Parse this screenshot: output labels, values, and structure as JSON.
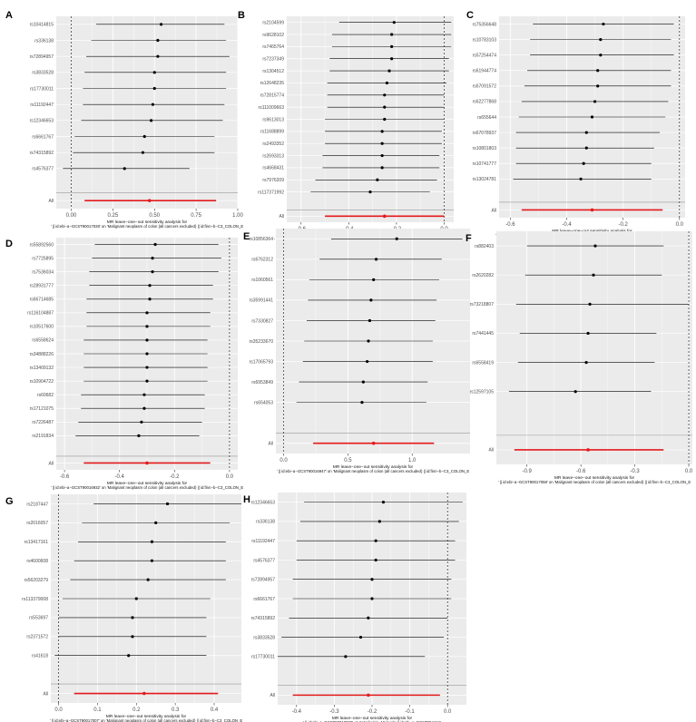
{
  "colors": {
    "panel_bg": "#ebebeb",
    "grid": "#ffffff",
    "point": "#000000",
    "all_point": "#e41a1c",
    "text": "#4d4d4d"
  },
  "chart_data": [
    {
      "panel": "A",
      "type": "scatter",
      "snps": [
        "rs10414815",
        "rs336138",
        "rs72894957",
        "rs3833528",
        "rs17730011",
        "rs11192447",
        "rs12346653",
        "rs6661767",
        "rs74315892",
        "rs4576377"
      ],
      "estimates": [
        0.54,
        0.52,
        0.52,
        0.5,
        0.5,
        0.49,
        0.48,
        0.44,
        0.43,
        0.32
      ],
      "ci_low": [
        0.15,
        0.12,
        0.09,
        0.08,
        0.07,
        0.07,
        0.06,
        0.02,
        0.01,
        -0.05
      ],
      "ci_high": [
        0.92,
        0.93,
        0.95,
        0.93,
        0.93,
        0.92,
        0.91,
        0.86,
        0.86,
        0.71
      ],
      "all": {
        "label": "All",
        "estimate": 0.47,
        "ci_low": 0.08,
        "ci_high": 0.87
      },
      "xlim": [
        -0.09,
        1.0
      ],
      "xticks": [
        0.0,
        0.25,
        0.5,
        0.75,
        1.0
      ],
      "xtick_labels": [
        "0.00",
        "0.25",
        "0.50",
        "0.75",
        "1.00"
      ],
      "xlabel_line1": "MR leave−one−out sensitivity analysis for",
      "xlabel_line2": "' || id:ebi−a−GCST90017028' on 'Malignant neoplasm of colon (all cancers excluded) || id:finn−b−C3_COLON_E"
    },
    {
      "panel": "B",
      "type": "scatter",
      "snps": [
        "rs2104599",
        "rs9628102",
        "rs7465764",
        "rs7237349",
        "rs1304512",
        "rs12648235",
        "rs72815774",
        "rs111009663",
        "rs9613013",
        "rs11688899",
        "rs2493352",
        "rs2693313",
        "rs4668431",
        "rs7976209",
        "rs117371992"
      ],
      "estimates": [
        -0.21,
        -0.22,
        -0.22,
        -0.22,
        -0.23,
        -0.24,
        -0.25,
        -0.25,
        -0.25,
        -0.26,
        -0.26,
        -0.26,
        -0.26,
        -0.28,
        -0.31
      ],
      "ci_low": [
        -0.44,
        -0.47,
        -0.47,
        -0.48,
        -0.48,
        -0.49,
        -0.49,
        -0.49,
        -0.5,
        -0.5,
        -0.5,
        -0.51,
        -0.51,
        -0.54,
        -0.56
      ],
      "ci_high": [
        0.03,
        0.03,
        0.03,
        0.02,
        0.02,
        0.01,
        0.0,
        0.0,
        0.0,
        -0.01,
        -0.01,
        -0.02,
        -0.02,
        -0.03,
        -0.06
      ],
      "all": {
        "label": "All",
        "estimate": -0.25,
        "ci_low": -0.5,
        "ci_high": 0.0
      },
      "xlim": [
        -0.66,
        0.04
      ],
      "xticks": [
        -0.6,
        -0.4,
        -0.2,
        0.0
      ],
      "xtick_labels": [
        "-0.6",
        "-0.4",
        "-0.2",
        "0.0"
      ],
      "xlabel_line1": "MR leave−one−out sensitivity analysis for",
      "xlabel_line2": "' || id:ebi−a−GCST90017045' on 'Malignant neoplasm of colon (all cancers excluded) || id:finn−b−C3_COLON_E"
    },
    {
      "panel": "C",
      "type": "scatter",
      "snps": [
        "rs75356648",
        "rs10783103",
        "rs57254474",
        "rs61944774",
        "rs67091572",
        "rs62277868",
        "rs655644",
        "rs67078937",
        "rs10801803",
        "rs10741777",
        "rs13024781"
      ],
      "estimates": [
        -0.27,
        -0.28,
        -0.28,
        -0.29,
        -0.29,
        -0.3,
        -0.31,
        -0.33,
        -0.33,
        -0.34,
        -0.35
      ],
      "ci_low": [
        -0.52,
        -0.53,
        -0.53,
        -0.54,
        -0.55,
        -0.56,
        -0.57,
        -0.58,
        -0.58,
        -0.58,
        -0.59
      ],
      "ci_high": [
        -0.02,
        -0.03,
        -0.02,
        -0.03,
        -0.03,
        -0.04,
        -0.05,
        -0.07,
        -0.09,
        -0.1,
        -0.1
      ],
      "all": {
        "label": "All",
        "estimate": -0.31,
        "ci_low": -0.56,
        "ci_high": -0.06
      },
      "xlim": [
        -0.64,
        0.02
      ],
      "xticks": [
        -0.6,
        -0.4,
        -0.2,
        0.0
      ],
      "xtick_labels": [
        "-0.6",
        "-0.4",
        "-0.2",
        "0.0"
      ],
      "xlabel_line1": "MR leave−one−out sensitivity analysis for",
      "xlabel_line2": "' || id:ebi−a−GCST90017027' on 'Malignant neoplasm of colon (all cancers excluded) || id:finn−b−C3_COLON_E"
    },
    {
      "panel": "D",
      "type": "scatter",
      "snps": [
        "rs55892560",
        "rs7725895",
        "rs7536034",
        "rs28931777",
        "rs66714685",
        "rs116104887",
        "rs10517600",
        "rs6558624",
        "rs34888226",
        "rs13409132",
        "rs10904722",
        "rs60682",
        "rs17121075",
        "rs7226487",
        "rs2191834"
      ],
      "estimates": [
        -0.27,
        -0.28,
        -0.28,
        -0.29,
        -0.29,
        -0.3,
        -0.3,
        -0.3,
        -0.3,
        -0.3,
        -0.3,
        -0.31,
        -0.31,
        -0.32,
        -0.33
      ],
      "ci_low": [
        -0.49,
        -0.5,
        -0.51,
        -0.51,
        -0.52,
        -0.52,
        -0.52,
        -0.53,
        -0.53,
        -0.53,
        -0.53,
        -0.54,
        -0.54,
        -0.55,
        -0.56
      ],
      "ci_high": [
        -0.04,
        -0.03,
        -0.04,
        -0.06,
        -0.06,
        -0.07,
        -0.07,
        -0.08,
        -0.08,
        -0.08,
        -0.08,
        -0.09,
        -0.09,
        -0.1,
        -0.11
      ],
      "all": {
        "label": "All",
        "estimate": -0.3,
        "ci_low": -0.53,
        "ci_high": -0.07
      },
      "xlim": [
        -0.63,
        0.03
      ],
      "xticks": [
        -0.6,
        -0.4,
        -0.2,
        0.0
      ],
      "xtick_labels": [
        "-0.6",
        "-0.4",
        "-0.2",
        "0.0"
      ],
      "xlabel_line1": "MR leave−one−out sensitivity analysis for",
      "xlabel_line2": "' || id:ebi−a−GCST90016932' on 'Malignant neoplasm of colon (all cancers excluded) || id:finn−b−C3_COLON_E"
    },
    {
      "panel": "E",
      "type": "scatter",
      "snps": [
        "rs10856364",
        "rs6762312",
        "rs1060561",
        "rs35991441",
        "rs7330827",
        "rs35233670",
        "rs17065793",
        "rs6953849",
        "rs654053"
      ],
      "estimates": [
        0.88,
        0.72,
        0.7,
        0.68,
        0.67,
        0.66,
        0.65,
        0.62,
        0.61
      ],
      "ci_low": [
        0.37,
        0.28,
        0.2,
        0.19,
        0.18,
        0.16,
        0.15,
        0.12,
        0.1
      ],
      "ci_high": [
        1.39,
        1.23,
        1.21,
        1.19,
        1.18,
        1.16,
        1.16,
        1.12,
        1.11
      ],
      "all": {
        "label": "All",
        "estimate": 0.7,
        "ci_low": 0.23,
        "ci_high": 1.17
      },
      "xlim": [
        -0.06,
        1.45
      ],
      "xticks": [
        0.0,
        0.5,
        1.0
      ],
      "xtick_labels": [
        "0.0",
        "0.5",
        "1.0"
      ],
      "xlabel_line1": "MR leave−one−out sensitivity analysis for",
      "xlabel_line2": "' || id:ebi−a−GCST90016947' on 'Malignant neoplasm of colon (all cancers excluded) || id:finn−b−C3_COLON_E"
    },
    {
      "panel": "F",
      "type": "scatter",
      "snps": [
        "rs882403",
        "rs2620282",
        "rs73218807",
        "rs7441445",
        "rs6558419",
        "rs12597105"
      ],
      "estimates": [
        -0.52,
        -0.53,
        -0.55,
        -0.56,
        -0.57,
        -0.63
      ],
      "ci_low": [
        -0.9,
        -0.91,
        -0.96,
        -0.94,
        -0.95,
        -1.0
      ],
      "ci_high": [
        -0.14,
        -0.15,
        0.0,
        -0.18,
        -0.19,
        -0.21
      ],
      "all": {
        "label": "All",
        "estimate": -0.56,
        "ci_low": -0.97,
        "ci_high": -0.14
      },
      "xlim": [
        -1.07,
        0.02
      ],
      "xticks": [
        -0.9,
        -0.6,
        -0.3,
        0.0
      ],
      "xtick_labels": [
        "-0.9",
        "-0.6",
        "-0.3",
        "0.0"
      ],
      "xlabel_line1": "MR leave−one−out sensitivity analysis for",
      "xlabel_line2": "' || id:ebi−a−GCST90017058' on 'Malignant neoplasm of colon (all cancers excluded) || id:finn−b−C3_COLON_E"
    },
    {
      "panel": "G",
      "type": "scatter",
      "snps": [
        "rs2187447",
        "rs2016057",
        "rs13417161",
        "rs4600608",
        "rs56203279",
        "rs113379008",
        "rs553697",
        "rs2371572",
        "rs41618"
      ],
      "estimates": [
        0.28,
        0.25,
        0.24,
        0.24,
        0.23,
        0.2,
        0.19,
        0.19,
        0.18
      ],
      "ci_low": [
        0.09,
        0.06,
        0.05,
        0.04,
        0.03,
        0.01,
        0.0,
        0.0,
        -0.01
      ],
      "ci_high": [
        0.47,
        0.44,
        0.43,
        0.43,
        0.43,
        0.39,
        0.38,
        0.38,
        0.38
      ],
      "all": {
        "label": "All",
        "estimate": 0.22,
        "ci_low": 0.04,
        "ci_high": 0.41
      },
      "xlim": [
        -0.02,
        0.47
      ],
      "xticks": [
        0.0,
        0.1,
        0.2,
        0.3,
        0.4
      ],
      "xtick_labels": [
        "0.0",
        "0.1",
        "0.2",
        "0.3",
        "0.4"
      ],
      "xlabel_line1": "MR leave−one−out sensitivity analysis for",
      "xlabel_line2": "' || id:ebi−a−GCST90017007' on 'Malignant neoplasm of colon (all cancers excluded) || id:finn−b−C3_COLON_E"
    },
    {
      "panel": "H",
      "type": "scatter",
      "snps": [
        "rs12346653",
        "rs336138",
        "rs11192447",
        "rs4576377",
        "rs72894957",
        "rs6661767",
        "rs74315892",
        "rs3833528",
        "rs17730011"
      ],
      "estimates": [
        -0.17,
        -0.18,
        -0.19,
        -0.19,
        -0.2,
        -0.2,
        -0.21,
        -0.23,
        -0.27
      ],
      "ci_low": [
        -0.38,
        -0.39,
        -0.4,
        -0.4,
        -0.41,
        -0.41,
        -0.42,
        -0.44,
        -0.49
      ],
      "ci_high": [
        0.04,
        0.03,
        0.02,
        0.02,
        0.01,
        0.01,
        0.0,
        -0.01,
        -0.06
      ],
      "all": {
        "label": "All",
        "estimate": -0.21,
        "ci_low": -0.41,
        "ci_high": -0.02
      },
      "xlim": [
        -0.45,
        0.05
      ],
      "xticks": [
        -0.4,
        -0.3,
        -0.2,
        -0.1,
        0.0
      ],
      "xtick_labels": [
        "-0.4",
        "-0.3",
        "-0.2",
        "-0.1",
        "0.0"
      ],
      "xlabel_line1": "MR leave−one−out sensitivity analysis for",
      "xlabel_line2": "' || id:ebi−a−GCST90017028' on 'Interleukin−10 levels || id:ebi−a−GCST004444'"
    }
  ]
}
